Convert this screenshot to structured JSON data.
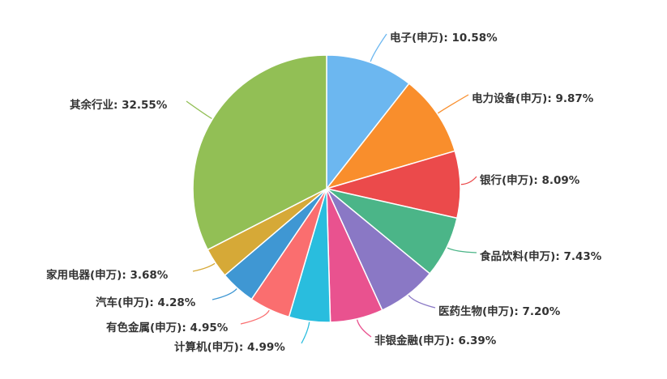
{
  "chart_data": {
    "type": "pie",
    "title": "",
    "slices": [
      {
        "name": "电子(申万)",
        "value": 10.58,
        "label": "电子(申万): 10.58%",
        "color": "#6CB7F0"
      },
      {
        "name": "电力设备(申万)",
        "value": 9.87,
        "label": "电力设备(申万): 9.87%",
        "color": "#F98E2C"
      },
      {
        "name": "银行(申万)",
        "value": 8.09,
        "label": "银行(申万): 8.09%",
        "color": "#EB4A4B"
      },
      {
        "name": "食品饮料(申万)",
        "value": 7.43,
        "label": "食品饮料(申万): 7.43%",
        "color": "#4BB588"
      },
      {
        "name": "医药生物(申万)",
        "value": 7.2,
        "label": "医药生物(申万): 7.20%",
        "color": "#8A78C5"
      },
      {
        "name": "非银金融(申万)",
        "value": 6.39,
        "label": "非银金融(申万): 6.39%",
        "color": "#E9528F"
      },
      {
        "name": "计算机(申万)",
        "value": 4.99,
        "label": "计算机(申万): 4.99%",
        "color": "#29BDDE"
      },
      {
        "name": "有色金属(申万)",
        "value": 4.95,
        "label": "有色金属(申万): 4.95%",
        "color": "#FA6E6F"
      },
      {
        "name": "汽车(申万)",
        "value": 4.28,
        "label": "汽车(申万): 4.28%",
        "color": "#3F97D3"
      },
      {
        "name": "家用电器(申万)",
        "value": 3.68,
        "label": "家用电器(申万): 3.68%",
        "color": "#D6A937"
      },
      {
        "name": "其余行业",
        "value": 32.55,
        "label": "其余行业: 32.55%",
        "color": "#92BF55"
      }
    ]
  }
}
